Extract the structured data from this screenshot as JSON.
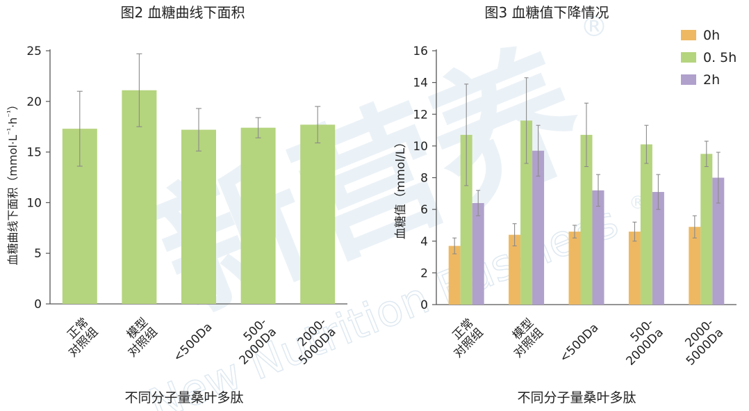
{
  "watermark": {
    "text_cn": "新营养",
    "text_en": "New Nutrition Business",
    "mark": "®"
  },
  "colors": {
    "auc": "#b5d47e",
    "h0": "#eeb862",
    "h05": "#b5d47e",
    "h2": "#b0a0cc",
    "err": "#8a8a8a",
    "axis": "#555555"
  },
  "chart_data": [
    {
      "type": "bar",
      "title": "图2 血糖曲线下面积",
      "ylabel": "血糖曲线下面积（mmol·L⁻¹·h⁻¹）",
      "ylabel_parts": [
        "血糖曲线下面积（mmol·L",
        "⁻¹",
        "·h",
        "⁻¹",
        "）"
      ],
      "xlabel": "不同分子量桑叶多肽",
      "ylim": [
        0,
        25
      ],
      "yticks": [
        0,
        5,
        10,
        15,
        20,
        25
      ],
      "categories": [
        [
          "正常",
          "对照组"
        ],
        [
          "模型",
          "对照组"
        ],
        [
          "<500Da"
        ],
        [
          "500-",
          "2000Da"
        ],
        [
          "2000-",
          "5000Da"
        ]
      ],
      "series": [
        {
          "values": [
            17.3,
            21.1,
            17.2,
            17.4,
            17.7
          ],
          "errors": [
            3.7,
            3.6,
            2.1,
            1.0,
            1.8
          ]
        }
      ]
    },
    {
      "type": "bar",
      "title": "图3 血糖值下降情况",
      "ylabel": "血糖值（mmol/L）",
      "xlabel": "不同分子量桑叶多肽",
      "ylim": [
        0,
        16
      ],
      "yticks": [
        0,
        2,
        4,
        6,
        8,
        10,
        12,
        14,
        16
      ],
      "legend_position": "top-right",
      "categories": [
        [
          "正常",
          "对照组"
        ],
        [
          "模型",
          "对照组"
        ],
        [
          "<500Da"
        ],
        [
          "500-",
          "2000Da"
        ],
        [
          "2000-",
          "5000Da"
        ]
      ],
      "series": [
        {
          "name": "0h",
          "values": [
            3.7,
            4.4,
            4.6,
            4.6,
            4.9
          ],
          "errors": [
            0.5,
            0.7,
            0.4,
            0.6,
            0.7
          ]
        },
        {
          "name": "0. 5h",
          "values": [
            10.7,
            11.6,
            10.7,
            10.1,
            9.5
          ],
          "errors": [
            3.2,
            2.7,
            2.0,
            1.2,
            0.8
          ]
        },
        {
          "name": "2h",
          "values": [
            6.4,
            9.7,
            7.2,
            7.1,
            8.0
          ],
          "errors": [
            0.8,
            1.6,
            1.0,
            1.1,
            1.6
          ]
        }
      ]
    }
  ]
}
